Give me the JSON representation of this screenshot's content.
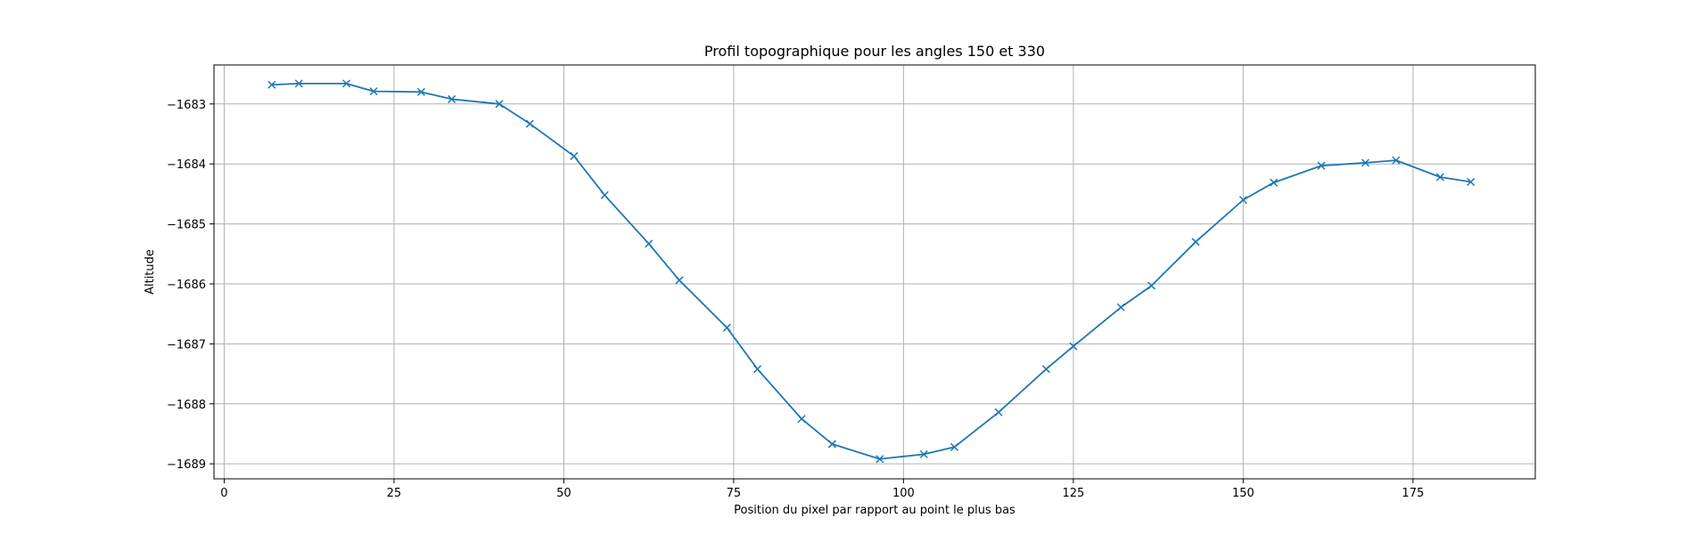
{
  "chart_data": {
    "type": "line",
    "title": "Profil topographique pour les angles 150 et 330",
    "xlabel": "Position du pixel par rapport au point le plus bas",
    "ylabel": "Altitude",
    "xlim": [
      -1.5,
      193
    ],
    "ylim": [
      -1689.25,
      -1682.35
    ],
    "xticks": [
      0,
      25,
      50,
      75,
      100,
      125,
      150,
      175
    ],
    "xtick_labels": [
      "0",
      "25",
      "50",
      "75",
      "100",
      "125",
      "150",
      "175"
    ],
    "yticks": [
      -1683,
      -1684,
      -1685,
      -1686,
      -1687,
      -1688,
      -1689
    ],
    "ytick_labels": [
      "−1683",
      "−1684",
      "−1685",
      "−1686",
      "−1687",
      "−1688",
      "−1689"
    ],
    "grid": true,
    "marker": "x",
    "color": "#1f77b4",
    "series": [
      {
        "x": [
          7,
          11,
          18,
          22,
          29,
          33.5,
          40.5,
          45,
          51.5,
          56,
          62.5,
          67,
          74,
          78.5,
          85,
          89.5,
          96.5,
          103,
          107.5,
          114,
          121,
          125,
          132,
          136.5,
          143,
          150,
          154.5,
          161.5,
          168,
          172.5,
          179,
          183.5
        ],
        "y": [
          -1682.68,
          -1682.66,
          -1682.66,
          -1682.79,
          -1682.8,
          -1682.92,
          -1683.0,
          -1683.33,
          -1683.87,
          -1684.52,
          -1685.33,
          -1685.94,
          -1686.73,
          -1687.42,
          -1688.25,
          -1688.67,
          -1688.92,
          -1688.84,
          -1688.72,
          -1688.14,
          -1687.42,
          -1687.04,
          -1686.39,
          -1686.03,
          -1685.3,
          -1684.6,
          -1684.31,
          -1684.03,
          -1683.98,
          -1683.94,
          -1684.22,
          -1684.3
        ]
      }
    ]
  }
}
